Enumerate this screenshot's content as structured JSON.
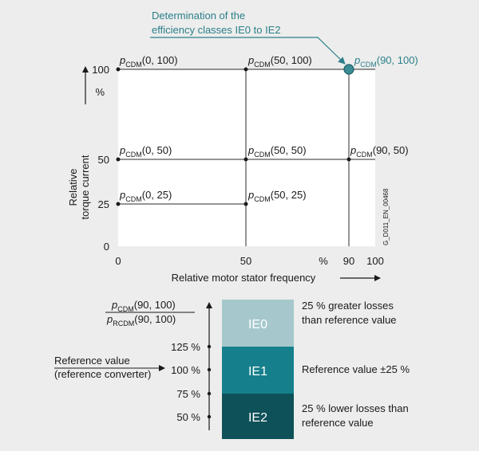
{
  "annotation": {
    "line1": "Determination of the",
    "line2": "efficiency classes IE0 to IE2"
  },
  "colors": {
    "teal_text": "#2c7f8a",
    "marker": "#3a8b95",
    "ie0": "#a6c8cd",
    "ie1": "#15808b",
    "ie2": "#0e5158",
    "grid": "#2b2b2b",
    "background": "#ecedec"
  },
  "y_axis": {
    "label_line1": "Relative",
    "label_line2": "torque current",
    "unit": "%",
    "ticks": [
      "100",
      "50",
      "25",
      "0"
    ]
  },
  "x_axis": {
    "label": "Relative motor stator frequency",
    "unit": "%",
    "ticks": [
      "0",
      "50",
      "90",
      "100"
    ]
  },
  "side_code": "G_D011_EN_00468",
  "points": [
    {
      "symbol": "p",
      "sub": "CDM",
      "args": "(0, 100)"
    },
    {
      "symbol": "p",
      "sub": "CDM",
      "args": "(50, 100)"
    },
    {
      "symbol": "p",
      "sub": "CDM",
      "args": "(90, 100)"
    },
    {
      "symbol": "p",
      "sub": "CDM",
      "args": "(0, 50)"
    },
    {
      "symbol": "p",
      "sub": "CDM",
      "args": "(50, 50)"
    },
    {
      "symbol": "p",
      "sub": "CDM",
      "args": "(90, 50)"
    },
    {
      "symbol": "p",
      "sub": "CDM",
      "args": "(0, 25)"
    },
    {
      "symbol": "p",
      "sub": "CDM",
      "args": "(50, 25)"
    }
  ],
  "ratio": {
    "num_symbol": "p",
    "num_sub": "CDM",
    "num_args": "(90, 100)",
    "den_symbol": "p",
    "den_sub": "RCDM",
    "den_args": "(90, 100)"
  },
  "reference": {
    "line1": "Reference value",
    "line2": "(reference converter)"
  },
  "scale_ticks": [
    "125 %",
    "100 %",
    "75 %",
    "50 %"
  ],
  "classes": [
    {
      "name": "IE0",
      "desc_line1": "25 % greater losses",
      "desc_line2": "than reference value"
    },
    {
      "name": "IE1",
      "desc_line1": "Reference value ±25 %",
      "desc_line2": ""
    },
    {
      "name": "IE2",
      "desc_line1": "25 % lower losses than",
      "desc_line2": "reference value"
    }
  ]
}
